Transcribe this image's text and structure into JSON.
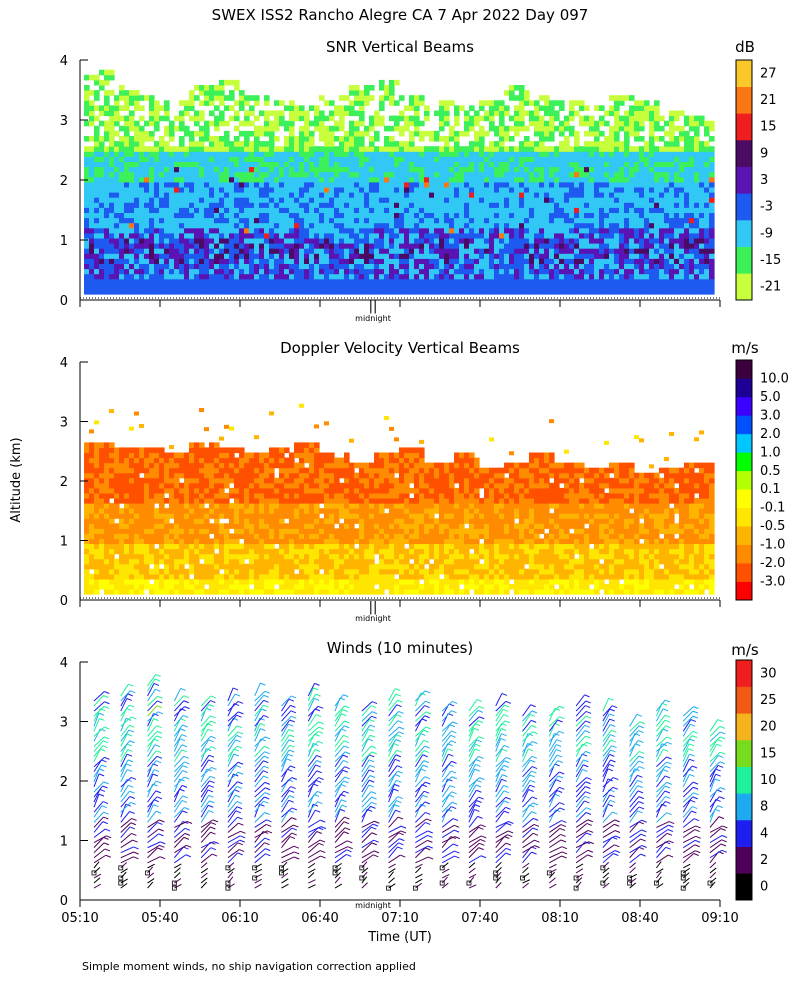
{
  "figure_title": "SWEX ISS2 Rancho Alegre CA   7 Apr 2022 Day 097",
  "footnote": "Simple moment winds, no ship navigation correction applied",
  "y_axis_label": "Altitude (km)",
  "x_axis_label": "Time (UT)",
  "midnight_label": "midnight",
  "midnight_marker": "||",
  "chart_data": [
    {
      "type": "heatmap",
      "title": "SNR Vertical Beams",
      "unit": "dB",
      "ylim": [
        0,
        4
      ],
      "yticks": [
        "0",
        "1",
        "2",
        "3",
        "4"
      ],
      "colorbar": {
        "colors": [
          "#c8ff3c",
          "#3cf05a",
          "#32c8f5",
          "#1e5af0",
          "#5a14b4",
          "#4b0a64",
          "#f01e1e",
          "#fa7814",
          "#fac828"
        ],
        "labels": [
          "-21",
          "-15",
          "-9",
          "-3",
          "3",
          "9",
          "15",
          "21",
          "27"
        ]
      },
      "data_top_km": [
        3.8,
        3.5,
        3.4,
        3.3,
        3.5,
        3.6,
        3.4,
        3.3,
        3.2,
        3.4,
        3.5,
        3.6,
        3.4,
        3.3,
        3.2,
        3.3,
        3.5,
        3.4,
        3.3,
        3.2,
        3.4,
        3.3,
        3.1,
        3.0
      ]
    },
    {
      "type": "heatmap",
      "title": "Doppler Velocity Vertical Beams",
      "unit": "m/s",
      "ylim": [
        0,
        4
      ],
      "yticks": [
        "0",
        "1",
        "2",
        "3",
        "4"
      ],
      "colorbar": {
        "colors": [
          "#ff0000",
          "#ff5000",
          "#ff8c00",
          "#ffb400",
          "#ffe600",
          "#ffff00",
          "#b4ff00",
          "#00ff00",
          "#00c8ff",
          "#0050ff",
          "#3c00ff",
          "#1e0096",
          "#3c003c"
        ],
        "labels": [
          "-3.0",
          "-2.0",
          "-1.0",
          "-0.5",
          "-0.1",
          "0.1",
          "0.5",
          "1.0",
          "2.0",
          "3.0",
          "5.0",
          "10.0"
        ]
      },
      "data_top_km": [
        2.6,
        2.5,
        2.5,
        2.4,
        2.6,
        2.5,
        2.4,
        2.5,
        2.6,
        2.4,
        2.3,
        2.4,
        2.5,
        2.3,
        2.4,
        2.2,
        2.3,
        2.4,
        2.3,
        2.2,
        2.3,
        2.1,
        2.2,
        2.3
      ]
    },
    {
      "type": "scatter",
      "title": "Winds (10 minutes)",
      "unit": "m/s",
      "ylim": [
        0,
        4
      ],
      "yticks": [
        "0",
        "1",
        "2",
        "3",
        "4"
      ],
      "x": [
        "05:10",
        "05:40",
        "06:10",
        "06:40",
        "07:10",
        "07:40",
        "08:10",
        "08:40",
        "09:10"
      ],
      "colorbar": {
        "colors": [
          "#000000",
          "#50005a",
          "#1e1ef0",
          "#1eaaf0",
          "#1ef09b",
          "#78dc1e",
          "#f5b41e",
          "#f05a14",
          "#f01e1e"
        ],
        "labels": [
          "0",
          "2",
          "4",
          "8",
          "10",
          "15",
          "20",
          "25",
          "30"
        ]
      },
      "profile_count": 24,
      "profile_top_km": [
        3.4,
        3.5,
        3.6,
        3.4,
        3.3,
        3.4,
        3.5,
        3.3,
        3.5,
        3.3,
        3.2,
        3.4,
        3.4,
        3.2,
        3.2,
        3.3,
        3.1,
        3.1,
        3.3,
        3.2,
        3.0,
        3.2,
        3.1,
        2.9
      ]
    }
  ]
}
